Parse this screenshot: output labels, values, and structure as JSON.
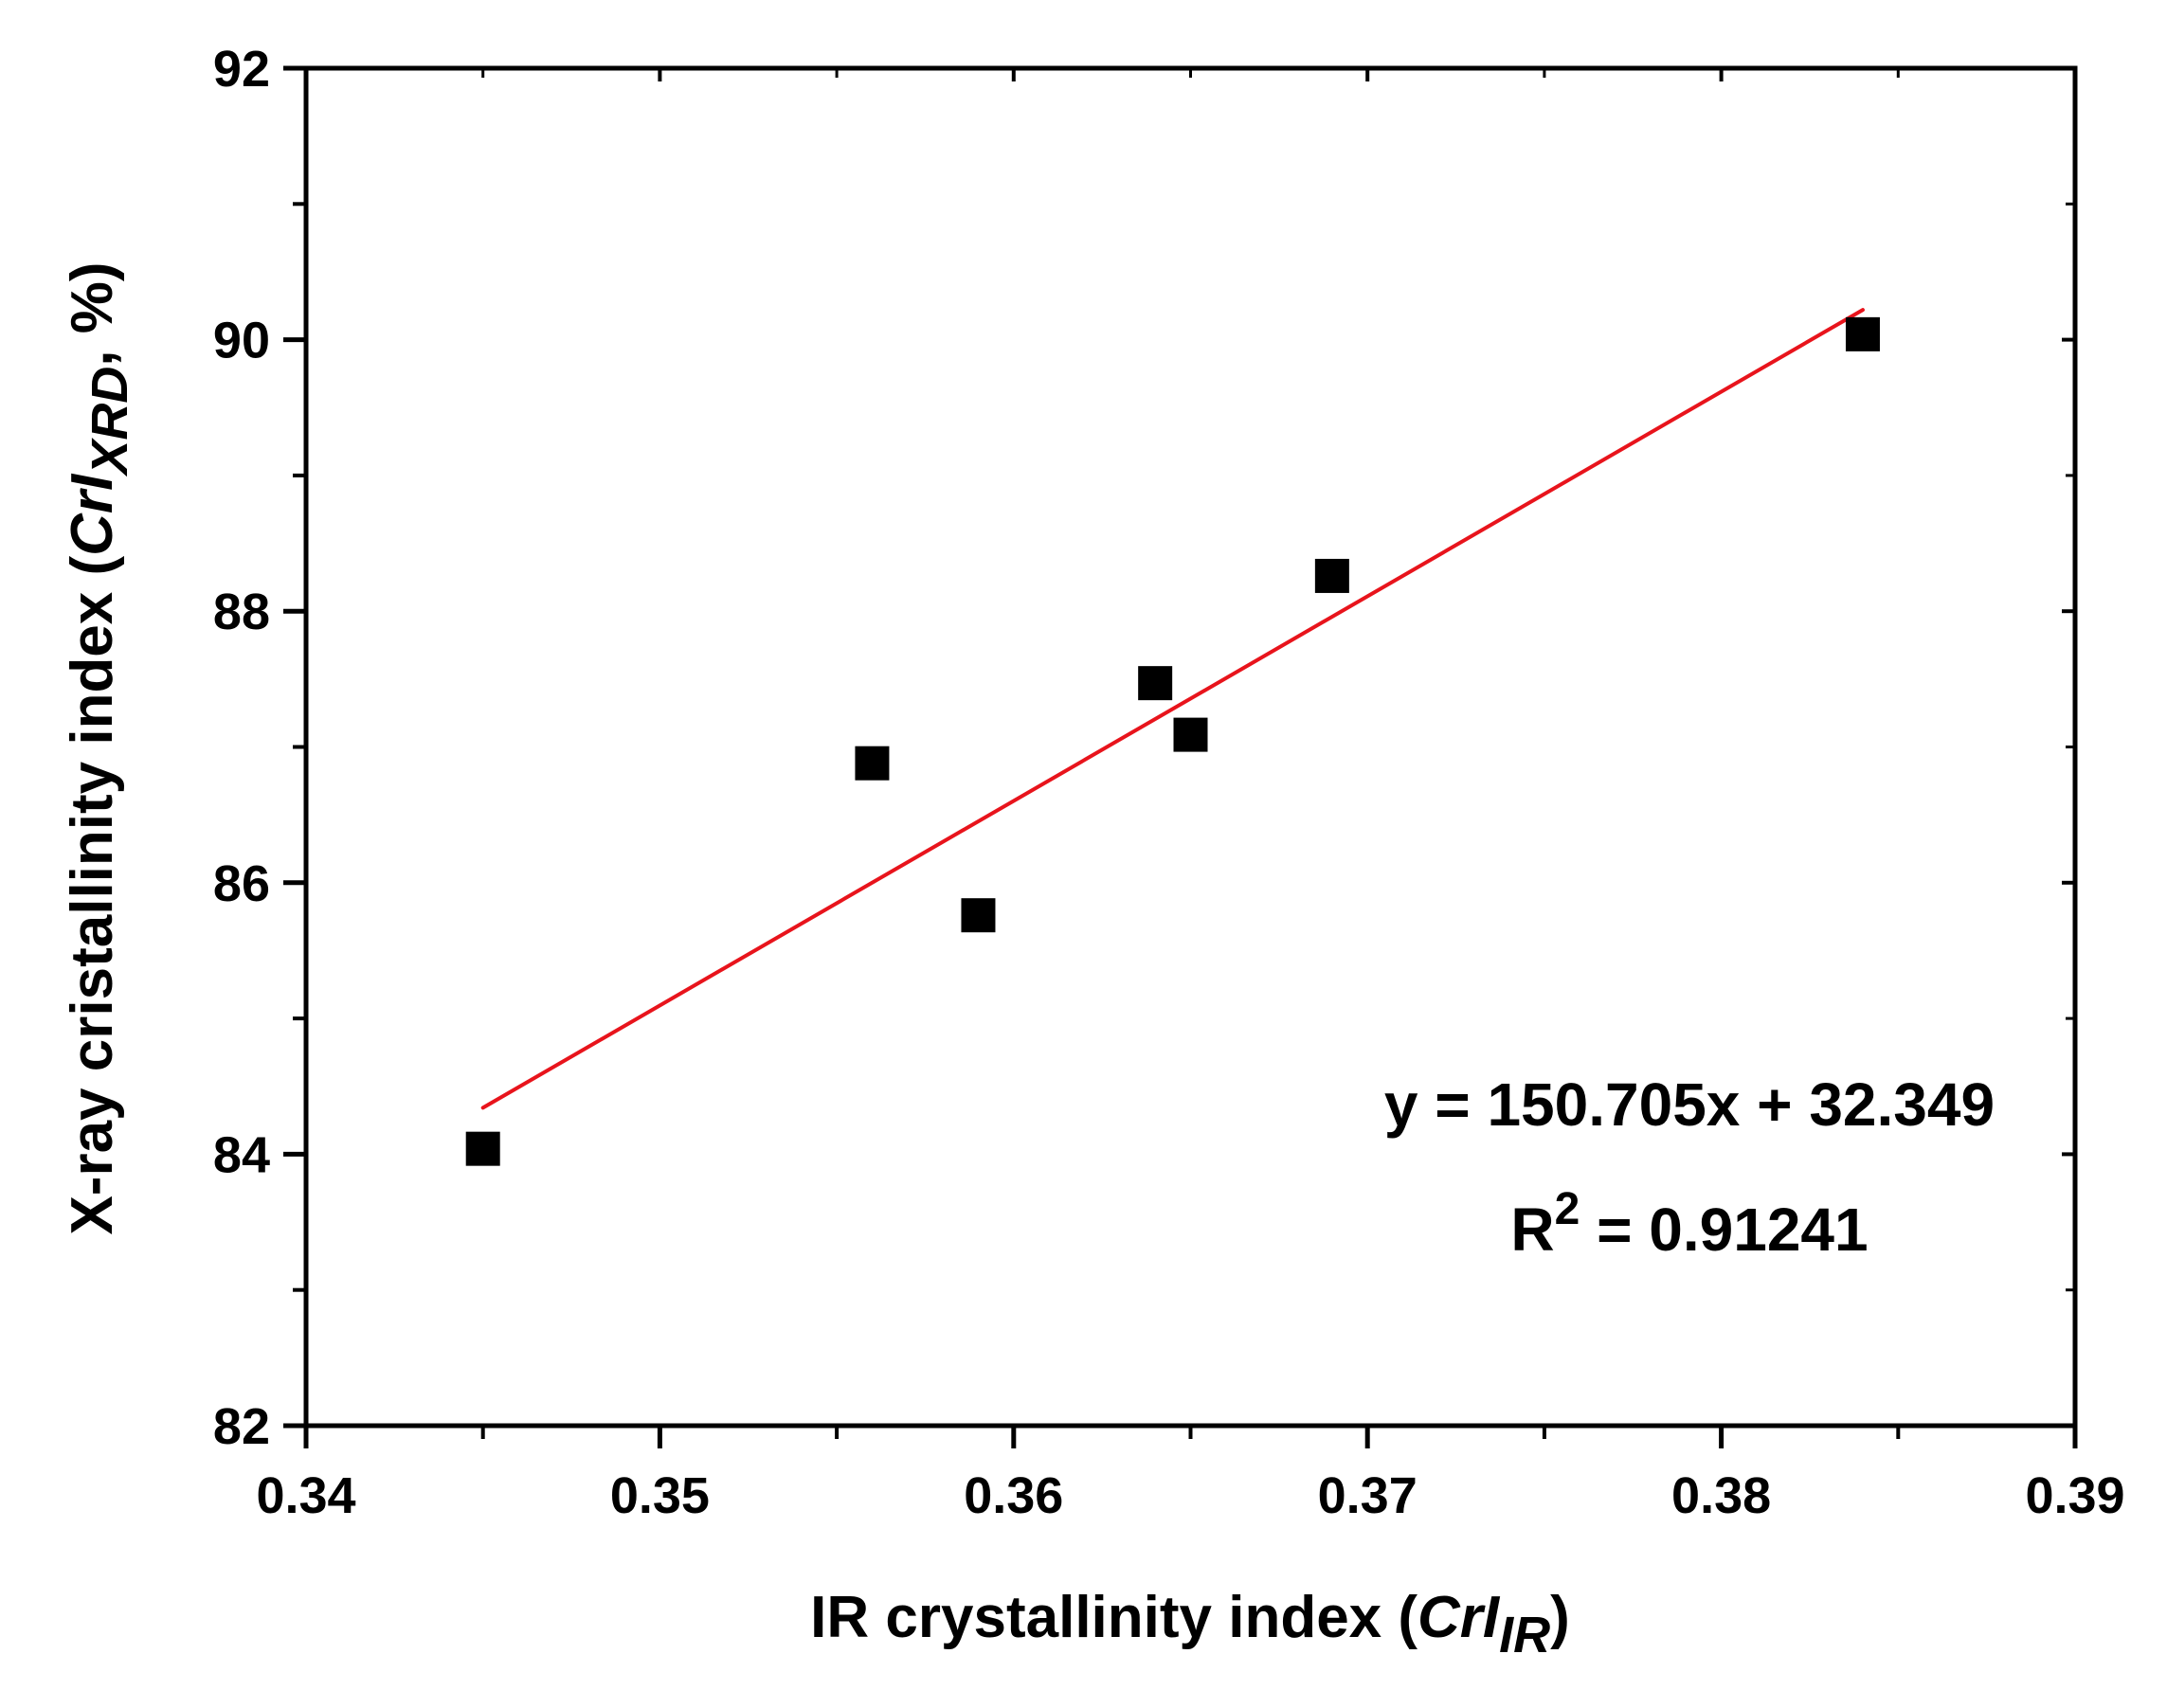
{
  "chart_data": {
    "type": "scatter",
    "xlabel": {
      "prefix": "IR crystallinity index (",
      "italic": "CrI",
      "subscript": "IR",
      "suffix": ")"
    },
    "ylabel": {
      "prefix": "X-ray cristallinity index (",
      "italic": "CrI",
      "subscript": "XRD",
      "suffix": ", %)"
    },
    "xlim": [
      0.34,
      0.39
    ],
    "ylim": [
      82,
      92
    ],
    "xticks": [
      0.34,
      0.35,
      0.36,
      0.37,
      0.38,
      0.39
    ],
    "xtick_labels": [
      "0.34",
      "0.35",
      "0.36",
      "0.37",
      "0.38",
      "0.39"
    ],
    "yticks": [
      82,
      84,
      86,
      88,
      90,
      92
    ],
    "ytick_labels": [
      "82",
      "84",
      "86",
      "88",
      "90",
      "92"
    ],
    "grid": false,
    "series": [
      {
        "name": "samples",
        "marker": "square",
        "color": "#000000",
        "x": [
          0.345,
          0.356,
          0.359,
          0.364,
          0.365,
          0.369,
          0.384
        ],
        "y": [
          84.04,
          86.88,
          85.76,
          87.47,
          87.09,
          88.26,
          90.04
        ]
      }
    ],
    "fit": {
      "color": "#e8141c",
      "slope": 150.705,
      "intercept": 32.349,
      "x_range": [
        0.345,
        0.384
      ],
      "equation_text": "y = 150.705x + 32.349",
      "r2_prefix": "R",
      "r2_sup": "2",
      "r2_value": " = 0.91241"
    }
  }
}
